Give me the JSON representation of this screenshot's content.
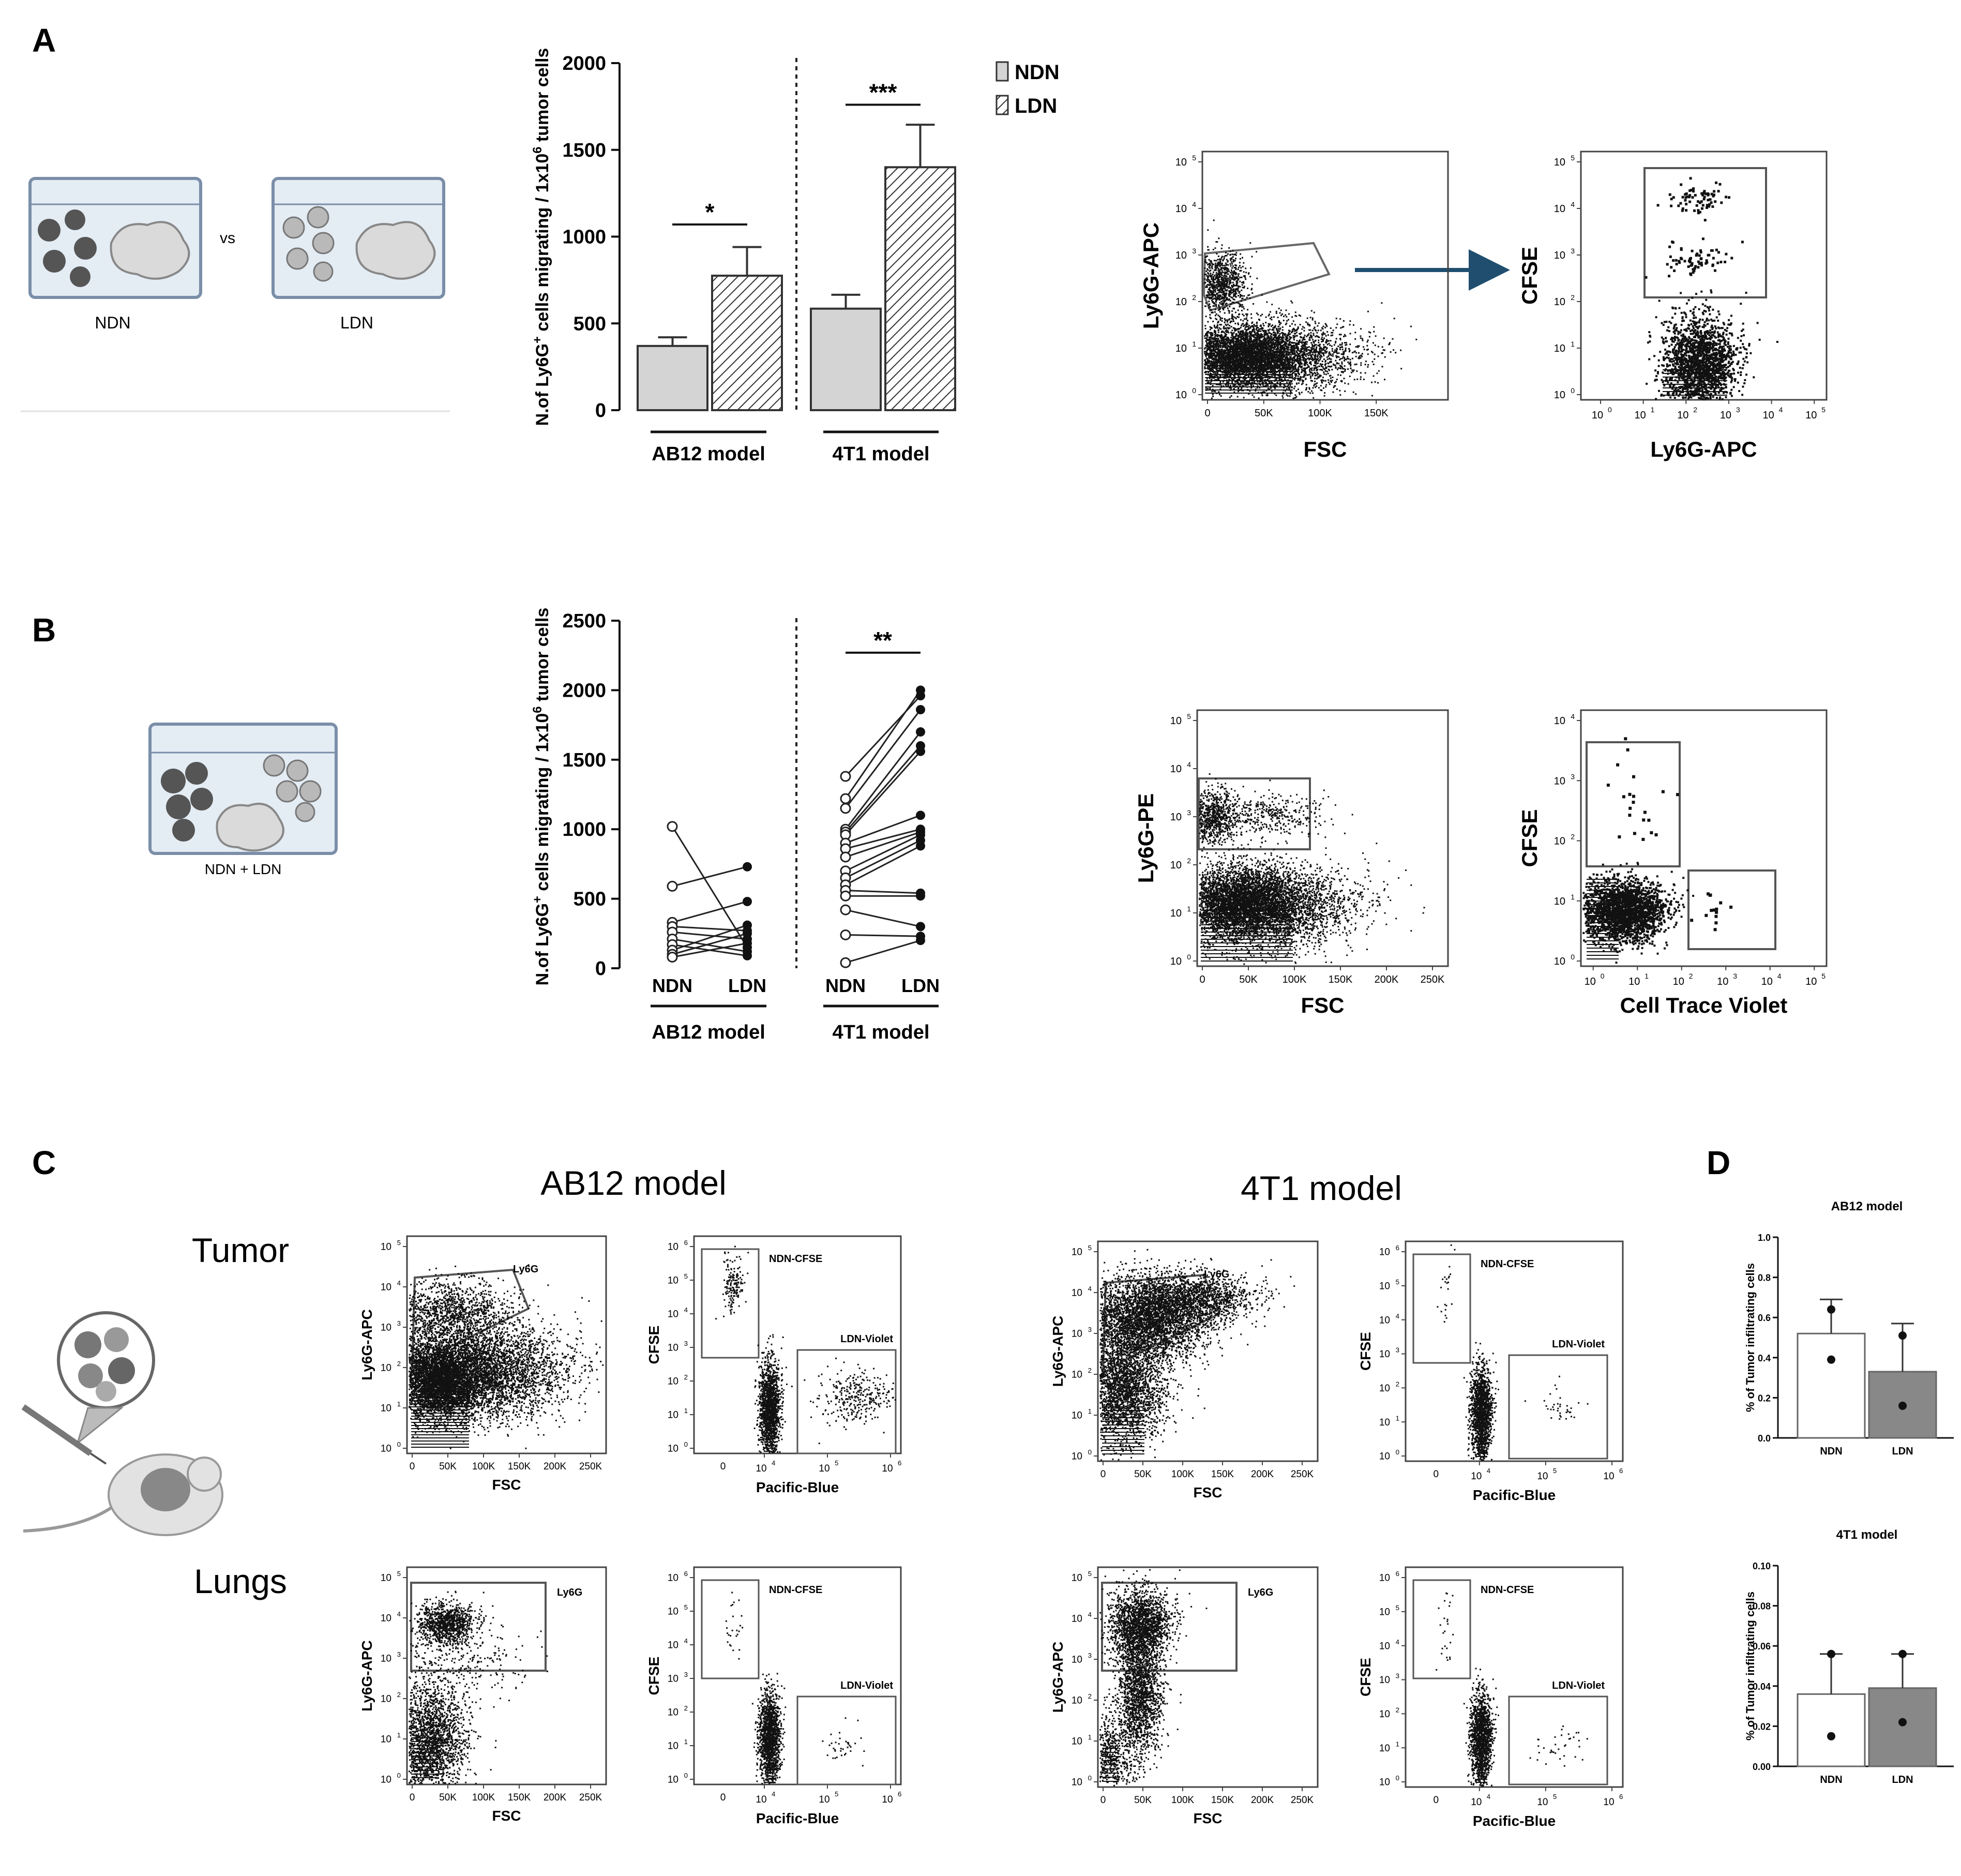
{
  "panels": {
    "A": "A",
    "B": "B",
    "C": "C",
    "D": "D"
  },
  "schematics": {
    "a_left": "NDN",
    "a_vs": "vs",
    "a_right": "LDN",
    "b_label": "NDN + LDN"
  },
  "c_headers": {
    "model1": "AB12 model",
    "model2": "4T1 model",
    "row1": "Tumor",
    "row2": "Lungs"
  },
  "chart_data": [
    {
      "id": "A_bar",
      "type": "bar",
      "ylabel_main": "N.of Ly6G",
      "ylabel_sup1": "+",
      "ylabel_mid": " cells migrating / 1x10",
      "ylabel_sup2": "6",
      "ylabel_end": " tumor cells",
      "ylim": [
        0,
        2000
      ],
      "yticks": [
        "0",
        "500",
        "1000",
        "1500",
        "2000"
      ],
      "groups": [
        "AB12 model",
        "4T1 model"
      ],
      "series": [
        {
          "name": "NDN",
          "values": [
            370,
            585
          ],
          "errors": [
            50,
            80
          ]
        },
        {
          "name": "LDN",
          "values": [
            775,
            1400
          ],
          "errors": [
            165,
            245
          ]
        }
      ],
      "significance": [
        "*",
        "***"
      ],
      "legend": [
        "NDN",
        "LDN"
      ]
    },
    {
      "id": "B_paired",
      "type": "scatter",
      "ylabel_main": "N.of Ly6G",
      "ylabel_sup1": "+",
      "ylabel_mid": " cells migrating / 1x10",
      "ylabel_sup2": "6",
      "ylabel_end": " tumor cells",
      "ylim": [
        0,
        2500
      ],
      "yticks": [
        "0",
        "500",
        "1000",
        "1500",
        "2000",
        "2500"
      ],
      "groups": [
        "AB12 model",
        "4T1 model"
      ],
      "xcats": [
        "NDN",
        "LDN",
        "NDN",
        "LDN"
      ],
      "significance": "**",
      "pairs_ab12": [
        [
          1020,
          150
        ],
        [
          590,
          730
        ],
        [
          330,
          480
        ],
        [
          300,
          270
        ],
        [
          260,
          210
        ],
        [
          210,
          120
        ],
        [
          170,
          90
        ],
        [
          130,
          310
        ],
        [
          100,
          250
        ],
        [
          80,
          180
        ]
      ],
      "pairs_4t1": [
        [
          1380,
          1960
        ],
        [
          1220,
          2000
        ],
        [
          1150,
          1860
        ],
        [
          1000,
          1700
        ],
        [
          980,
          1600
        ],
        [
          960,
          1560
        ],
        [
          900,
          1100
        ],
        [
          860,
          1000
        ],
        [
          800,
          980
        ],
        [
          700,
          960
        ],
        [
          650,
          920
        ],
        [
          600,
          880
        ],
        [
          560,
          540
        ],
        [
          520,
          520
        ],
        [
          420,
          300
        ],
        [
          240,
          230
        ],
        [
          40,
          200
        ]
      ]
    },
    {
      "id": "D_AB12",
      "type": "bar",
      "title": "AB12 model",
      "ylabel": "% of Tumor infiltrating cells",
      "ylim": [
        0,
        1.0
      ],
      "yticks": [
        "0.0",
        "0.2",
        "0.4",
        "0.6",
        "0.8",
        "1.0"
      ],
      "categories": [
        "NDN",
        "LDN"
      ],
      "values": [
        0.52,
        0.33
      ],
      "errors": [
        0.17,
        0.24
      ],
      "points": [
        [
          0.64,
          0.39
        ],
        [
          0.51,
          0.16
        ]
      ]
    },
    {
      "id": "D_4T1",
      "type": "bar",
      "title": "4T1 model",
      "ylabel": "% of Tumor infiltrating cells",
      "ylim": [
        0,
        0.1
      ],
      "yticks": [
        "0.00",
        "0.02",
        "0.04",
        "0.06",
        "0.08",
        "0.10"
      ],
      "categories": [
        "NDN",
        "LDN"
      ],
      "values": [
        0.036,
        0.039
      ],
      "errors": [
        0.02,
        0.017
      ],
      "points": [
        [
          0.056,
          0.015
        ],
        [
          0.056,
          0.022
        ]
      ]
    }
  ],
  "flow_plots": {
    "A1": {
      "y": "Ly6G-APC",
      "x": "FSC",
      "xticks": [
        "0",
        "50K",
        "100K",
        "150K"
      ],
      "yexp": [
        "0",
        "1",
        "2",
        "3",
        "4",
        "5"
      ]
    },
    "A2": {
      "y": "CFSE",
      "x": "Ly6G-APC",
      "xexp": [
        "0",
        "1",
        "2",
        "3",
        "4",
        "5"
      ],
      "yexp": [
        "0",
        "1",
        "2",
        "3",
        "4",
        "5"
      ]
    },
    "B1": {
      "y": "Ly6G-PE",
      "x": "FSC",
      "xticks": [
        "0",
        "50K",
        "100K",
        "150K",
        "200K",
        "250K"
      ],
      "yexp": [
        "0",
        "1",
        "2",
        "3",
        "4",
        "5"
      ]
    },
    "B2": {
      "y": "CFSE",
      "x": "Cell Trace Violet",
      "xexp": [
        "0",
        "1",
        "2",
        "3",
        "4",
        "5"
      ],
      "yexp": [
        "0",
        "1",
        "2",
        "3",
        "4"
      ]
    },
    "C1": {
      "y": "Ly6G-APC",
      "x": "FSC",
      "gate": "Ly6G",
      "xticks": [
        "0",
        "50K",
        "100K",
        "150K",
        "200K",
        "250K"
      ],
      "yexp": [
        "0",
        "1",
        "2",
        "3",
        "4",
        "5"
      ]
    },
    "C2": {
      "y": "CFSE",
      "x": "Pacific-Blue",
      "g1": "NDN-CFSE",
      "g2": "LDN-Violet",
      "xticks": [
        "0"
      ],
      "xexp": [
        "4",
        "5",
        "6"
      ],
      "yexp": [
        "0",
        "1",
        "2",
        "3",
        "4",
        "5",
        "6"
      ]
    },
    "C3": {
      "y": "Ly6G-APC",
      "x": "FSC",
      "gate": "Ly6G",
      "xticks": [
        "0",
        "50K",
        "100K",
        "150K",
        "200K",
        "250K"
      ],
      "yexp": [
        "0",
        "1",
        "2",
        "3",
        "4",
        "5"
      ]
    },
    "C4": {
      "y": "CFSE",
      "x": "Pacific-Blue",
      "g1": "NDN-CFSE",
      "g2": "LDN-Violet",
      "xticks": [
        "0"
      ],
      "xexp": [
        "4",
        "5",
        "6"
      ],
      "yexp": [
        "0",
        "1",
        "2",
        "3",
        "4",
        "5",
        "6"
      ]
    },
    "C5": {
      "y": "Ly6G-APC",
      "x": "FSC",
      "gate": "Ly6G",
      "xticks": [
        "0",
        "50K",
        "100K",
        "150K",
        "200K",
        "250K"
      ],
      "yexp": [
        "0",
        "1",
        "2",
        "3",
        "4",
        "5"
      ]
    },
    "C6": {
      "y": "CFSE",
      "x": "Pacific-Blue",
      "g1": "NDN-CFSE",
      "g2": "LDN-Violet",
      "xticks": [
        "0"
      ],
      "xexp": [
        "4",
        "5",
        "6"
      ],
      "yexp": [
        "0",
        "1",
        "2",
        "3",
        "4",
        "5",
        "6"
      ]
    },
    "C7": {
      "y": "Ly6G-APC",
      "x": "FSC",
      "gate": "Ly6G",
      "xticks": [
        "0",
        "50K",
        "100K",
        "150K",
        "200K",
        "250K"
      ],
      "yexp": [
        "0",
        "1",
        "2",
        "3",
        "4",
        "5"
      ]
    },
    "C8": {
      "y": "CFSE",
      "x": "Pacific-Blue",
      "g1": "NDN-CFSE",
      "g2": "LDN-Violet",
      "xticks": [
        "0"
      ],
      "xexp": [
        "4",
        "5",
        "6"
      ],
      "yexp": [
        "0",
        "1",
        "2",
        "3",
        "4",
        "5",
        "6"
      ]
    }
  },
  "colors": {
    "ndn_fill": "#d4d4d4",
    "ldn_fill": "#888888",
    "arrow": "#1f4e6e",
    "axis": "#111111",
    "dish_fill": "#e4ecf4",
    "dish_stroke": "#7a8ea8",
    "cell_dark": "#555555",
    "cell_light": "#b9b9b9"
  }
}
